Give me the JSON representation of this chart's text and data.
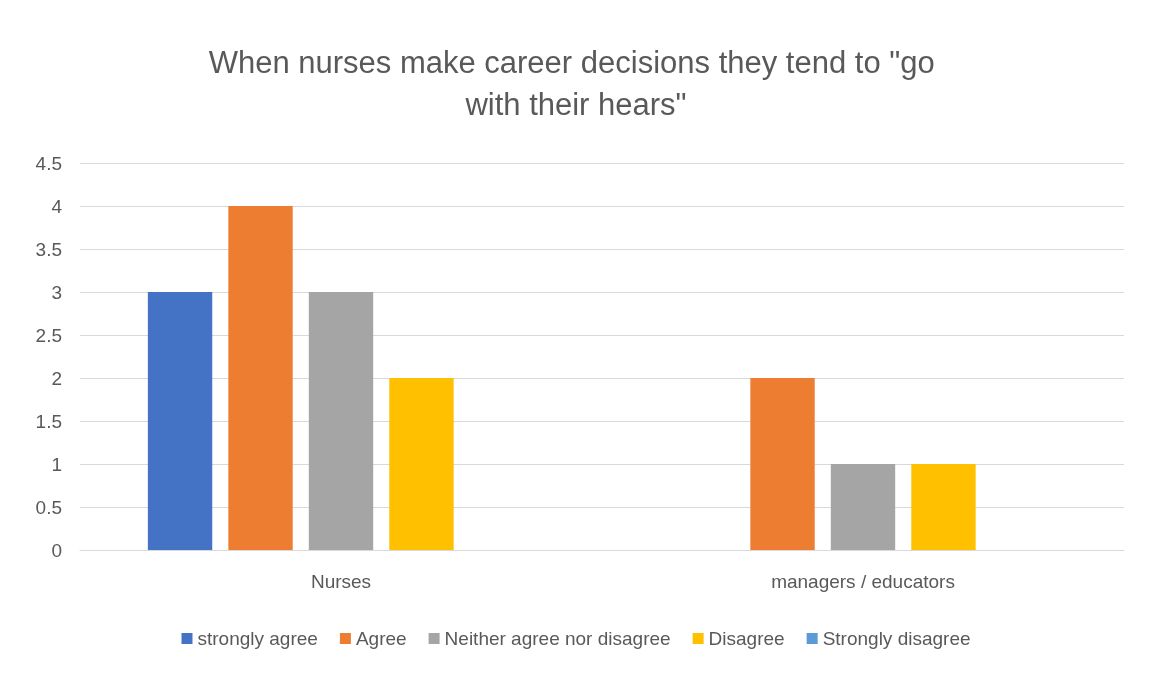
{
  "chart_data": {
    "type": "bar",
    "title": "When nurses make career decisions they tend to \"go with their hears\"",
    "categories": [
      "Nurses",
      "managers / educators"
    ],
    "series": [
      {
        "name": "strongly agree",
        "color": "#4472c4",
        "values": [
          3,
          0
        ]
      },
      {
        "name": "Agree",
        "color": "#ed7d31",
        "values": [
          4,
          2
        ]
      },
      {
        "name": "Neither agree nor disagree",
        "color": "#a5a5a5",
        "values": [
          3,
          1
        ]
      },
      {
        "name": "Disagree",
        "color": "#ffc000",
        "values": [
          2,
          1
        ]
      },
      {
        "name": "Strongly disagree",
        "color": "#5b9bd5",
        "values": [
          0,
          0
        ]
      }
    ],
    "ylim": [
      0,
      4.5
    ],
    "yticks": [
      0,
      0.5,
      1,
      1.5,
      2,
      2.5,
      3,
      3.5,
      4,
      4.5
    ],
    "grid": "y",
    "legend": "bottom"
  }
}
